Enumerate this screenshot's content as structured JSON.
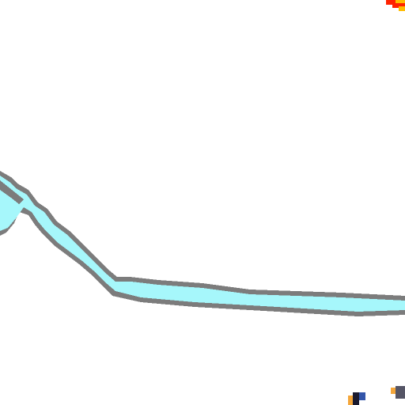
{
  "map": {
    "style": "pixelated zoomed map tile",
    "background_color": "#ffffff",
    "features": [
      {
        "kind": "river",
        "fill_color": "#a6f7fb",
        "outline_color": "#7c7c7c"
      },
      {
        "kind": "map-marker",
        "color_primary": "#ff2200",
        "color_secondary": "#ffbb00"
      },
      {
        "kind": "map-symbol",
        "color_primary": "#1a1a2e",
        "color_secondary": "#f4a63a"
      }
    ]
  }
}
